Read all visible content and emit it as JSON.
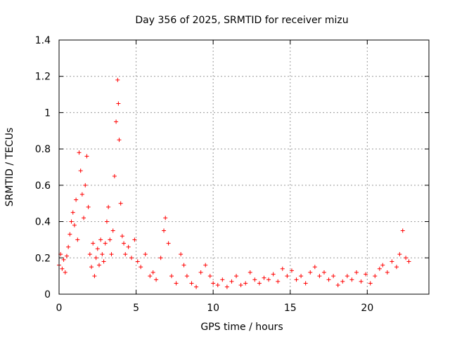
{
  "chart_data": {
    "type": "scatter",
    "title": "Day 356 of 2025, SRMTID for receiver mizu",
    "xlabel": "GPS time / hours",
    "ylabel": "SRMTID / TECUs",
    "xlim": [
      0,
      24
    ],
    "ylim": [
      0,
      1.4
    ],
    "xticks": [
      0,
      5,
      10,
      15,
      20
    ],
    "xtick_labels": [
      "0",
      "5",
      "10",
      "15",
      "20"
    ],
    "yticks": [
      0,
      0.2,
      0.4,
      0.6,
      0.8,
      1.0,
      1.2,
      1.4
    ],
    "ytick_labels": [
      "0",
      "0.2",
      "0.4",
      "0.6",
      "0.8",
      "1",
      "1.2",
      "1.4"
    ],
    "grid": true,
    "marker": "+",
    "color": "#ff0000",
    "series": [
      {
        "name": "SRMTID",
        "points": [
          [
            0.0,
            0.16
          ],
          [
            0.1,
            0.22
          ],
          [
            0.2,
            0.14
          ],
          [
            0.3,
            0.19
          ],
          [
            0.4,
            0.12
          ],
          [
            0.5,
            0.21
          ],
          [
            0.6,
            0.26
          ],
          [
            0.7,
            0.33
          ],
          [
            0.8,
            0.4
          ],
          [
            0.9,
            0.45
          ],
          [
            1.0,
            0.38
          ],
          [
            1.1,
            0.52
          ],
          [
            1.2,
            0.3
          ],
          [
            1.3,
            0.78
          ],
          [
            1.4,
            0.68
          ],
          [
            1.5,
            0.55
          ],
          [
            1.6,
            0.42
          ],
          [
            1.7,
            0.6
          ],
          [
            1.8,
            0.76
          ],
          [
            1.9,
            0.48
          ],
          [
            2.0,
            0.22
          ],
          [
            2.1,
            0.15
          ],
          [
            2.2,
            0.28
          ],
          [
            2.3,
            0.1
          ],
          [
            2.4,
            0.2
          ],
          [
            2.5,
            0.25
          ],
          [
            2.6,
            0.16
          ],
          [
            2.7,
            0.3
          ],
          [
            2.8,
            0.22
          ],
          [
            2.9,
            0.18
          ],
          [
            3.0,
            0.28
          ],
          [
            3.1,
            0.4
          ],
          [
            3.2,
            0.48
          ],
          [
            3.3,
            0.3
          ],
          [
            3.4,
            0.22
          ],
          [
            3.5,
            0.35
          ],
          [
            3.6,
            0.65
          ],
          [
            3.7,
            0.95
          ],
          [
            3.8,
            1.18
          ],
          [
            3.85,
            1.05
          ],
          [
            3.9,
            0.85
          ],
          [
            4.0,
            0.5
          ],
          [
            4.1,
            0.32
          ],
          [
            4.2,
            0.28
          ],
          [
            4.3,
            0.22
          ],
          [
            4.5,
            0.26
          ],
          [
            4.7,
            0.2
          ],
          [
            4.9,
            0.3
          ],
          [
            5.1,
            0.18
          ],
          [
            5.3,
            0.15
          ],
          [
            5.6,
            0.22
          ],
          [
            5.9,
            0.1
          ],
          [
            6.1,
            0.12
          ],
          [
            6.3,
            0.08
          ],
          [
            6.6,
            0.2
          ],
          [
            6.8,
            0.35
          ],
          [
            6.9,
            0.42
          ],
          [
            7.1,
            0.28
          ],
          [
            7.3,
            0.1
          ],
          [
            7.6,
            0.06
          ],
          [
            7.9,
            0.22
          ],
          [
            8.1,
            0.16
          ],
          [
            8.3,
            0.1
          ],
          [
            8.6,
            0.06
          ],
          [
            8.9,
            0.04
          ],
          [
            9.2,
            0.12
          ],
          [
            9.5,
            0.16
          ],
          [
            9.8,
            0.1
          ],
          [
            10.0,
            0.06
          ],
          [
            10.3,
            0.05
          ],
          [
            10.6,
            0.08
          ],
          [
            10.9,
            0.04
          ],
          [
            11.2,
            0.07
          ],
          [
            11.5,
            0.1
          ],
          [
            11.8,
            0.05
          ],
          [
            12.1,
            0.06
          ],
          [
            12.4,
            0.12
          ],
          [
            12.7,
            0.08
          ],
          [
            13.0,
            0.06
          ],
          [
            13.3,
            0.09
          ],
          [
            13.6,
            0.08
          ],
          [
            13.9,
            0.11
          ],
          [
            14.2,
            0.07
          ],
          [
            14.5,
            0.14
          ],
          [
            14.8,
            0.1
          ],
          [
            15.1,
            0.13
          ],
          [
            15.4,
            0.08
          ],
          [
            15.7,
            0.1
          ],
          [
            16.0,
            0.06
          ],
          [
            16.3,
            0.12
          ],
          [
            16.6,
            0.15
          ],
          [
            16.9,
            0.1
          ],
          [
            17.2,
            0.12
          ],
          [
            17.5,
            0.08
          ],
          [
            17.8,
            0.1
          ],
          [
            18.1,
            0.05
          ],
          [
            18.4,
            0.07
          ],
          [
            18.7,
            0.1
          ],
          [
            19.0,
            0.08
          ],
          [
            19.3,
            0.12
          ],
          [
            19.6,
            0.07
          ],
          [
            19.9,
            0.11
          ],
          [
            20.2,
            0.06
          ],
          [
            20.5,
            0.1
          ],
          [
            20.8,
            0.14
          ],
          [
            21.0,
            0.16
          ],
          [
            21.3,
            0.12
          ],
          [
            21.6,
            0.18
          ],
          [
            21.9,
            0.15
          ],
          [
            22.1,
            0.22
          ],
          [
            22.3,
            0.35
          ],
          [
            22.5,
            0.2
          ],
          [
            22.7,
            0.18
          ]
        ]
      }
    ]
  }
}
